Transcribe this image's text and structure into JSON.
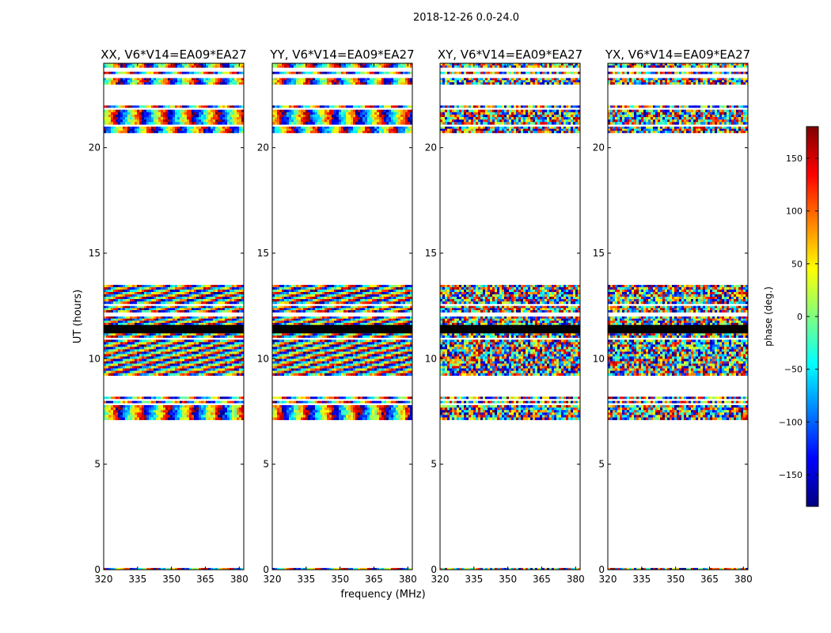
{
  "figure": {
    "suptitle": "2018-12-26 0.0-24.0",
    "shared_xlabel": "frequency (MHz)",
    "shared_ylabel": "UT (hours)"
  },
  "chart_data": [
    {
      "type": "heatmap",
      "title": "XX, V6*V14=EA09*EA27",
      "xlim": [
        320,
        382
      ],
      "ylim": [
        0,
        24
      ],
      "xticks": [
        "320",
        "335",
        "350",
        "365",
        "380"
      ],
      "yticks": [
        "0",
        "5",
        "10",
        "15",
        "20"
      ],
      "style": "smooth",
      "data_bands": [
        [
          0.0,
          0.08
        ],
        [
          7.1,
          7.8
        ],
        [
          7.9,
          8.0
        ],
        [
          8.1,
          8.2
        ],
        [
          9.2,
          10.9
        ],
        [
          11.0,
          11.2
        ],
        [
          11.6,
          12.0
        ],
        [
          12.2,
          12.5
        ],
        [
          12.6,
          13.5
        ],
        [
          20.7,
          21.0
        ],
        [
          21.1,
          21.8
        ],
        [
          21.9,
          22.0
        ],
        [
          23.0,
          23.3
        ],
        [
          23.5,
          23.6
        ],
        [
          23.8,
          24.0
        ]
      ],
      "dark_bands": [
        [
          11.2,
          11.6
        ]
      ]
    },
    {
      "type": "heatmap",
      "title": "YY, V6*V14=EA09*EA27",
      "xlim": [
        320,
        382
      ],
      "ylim": [
        0,
        24
      ],
      "xticks": [
        "320",
        "335",
        "350",
        "365",
        "380"
      ],
      "yticks": [
        "0",
        "5",
        "10",
        "15",
        "20"
      ],
      "style": "smooth",
      "data_bands": [
        [
          0.0,
          0.08
        ],
        [
          7.1,
          7.8
        ],
        [
          7.9,
          8.0
        ],
        [
          8.1,
          8.2
        ],
        [
          9.2,
          10.9
        ],
        [
          11.0,
          11.2
        ],
        [
          11.6,
          12.0
        ],
        [
          12.2,
          12.5
        ],
        [
          12.6,
          13.5
        ],
        [
          20.7,
          21.0
        ],
        [
          21.1,
          21.8
        ],
        [
          21.9,
          22.0
        ],
        [
          23.0,
          23.3
        ],
        [
          23.5,
          23.6
        ],
        [
          23.8,
          24.0
        ]
      ],
      "dark_bands": [
        [
          11.2,
          11.6
        ]
      ]
    },
    {
      "type": "heatmap",
      "title": "XY, V6*V14=EA09*EA27",
      "xlim": [
        320,
        382
      ],
      "ylim": [
        0,
        24
      ],
      "xticks": [
        "320",
        "335",
        "350",
        "365",
        "380"
      ],
      "yticks": [
        "0",
        "5",
        "10",
        "15",
        "20"
      ],
      "style": "noisy",
      "data_bands": [
        [
          0.0,
          0.08
        ],
        [
          7.1,
          7.8
        ],
        [
          7.9,
          8.0
        ],
        [
          8.1,
          8.2
        ],
        [
          9.2,
          10.9
        ],
        [
          11.0,
          11.2
        ],
        [
          11.6,
          12.0
        ],
        [
          12.2,
          12.5
        ],
        [
          12.6,
          13.5
        ],
        [
          20.7,
          21.0
        ],
        [
          21.1,
          21.8
        ],
        [
          21.9,
          22.0
        ],
        [
          23.0,
          23.3
        ],
        [
          23.5,
          23.6
        ],
        [
          23.8,
          24.0
        ]
      ],
      "dark_bands": [
        [
          11.2,
          11.6
        ]
      ]
    },
    {
      "type": "heatmap",
      "title": "YX, V6*V14=EA09*EA27",
      "xlim": [
        320,
        382
      ],
      "ylim": [
        0,
        24
      ],
      "xticks": [
        "320",
        "335",
        "350",
        "365",
        "380"
      ],
      "yticks": [
        "0",
        "5",
        "10",
        "15",
        "20"
      ],
      "style": "noisy",
      "data_bands": [
        [
          0.0,
          0.08
        ],
        [
          7.1,
          7.8
        ],
        [
          7.9,
          8.0
        ],
        [
          8.1,
          8.2
        ],
        [
          9.2,
          10.9
        ],
        [
          11.0,
          11.2
        ],
        [
          11.6,
          12.0
        ],
        [
          12.2,
          12.5
        ],
        [
          12.6,
          13.5
        ],
        [
          20.7,
          21.0
        ],
        [
          21.1,
          21.8
        ],
        [
          21.9,
          22.0
        ],
        [
          23.0,
          23.3
        ],
        [
          23.5,
          23.6
        ],
        [
          23.8,
          24.0
        ]
      ],
      "dark_bands": [
        [
          11.2,
          11.6
        ]
      ]
    }
  ],
  "colorbar": {
    "label": "phase (deg.)",
    "vmin": -180,
    "vmax": 180,
    "ticks": [
      "150",
      "100",
      "50",
      "0",
      "−50",
      "−100",
      "−150"
    ],
    "tick_values": [
      150,
      100,
      50,
      0,
      -50,
      -100,
      -150
    ],
    "colormap": "jet",
    "colors": [
      "#00007f",
      "#0000ff",
      "#007fff",
      "#00ffff",
      "#7fff7f",
      "#ffff00",
      "#ff7f00",
      "#ff0000",
      "#7f0000"
    ]
  }
}
